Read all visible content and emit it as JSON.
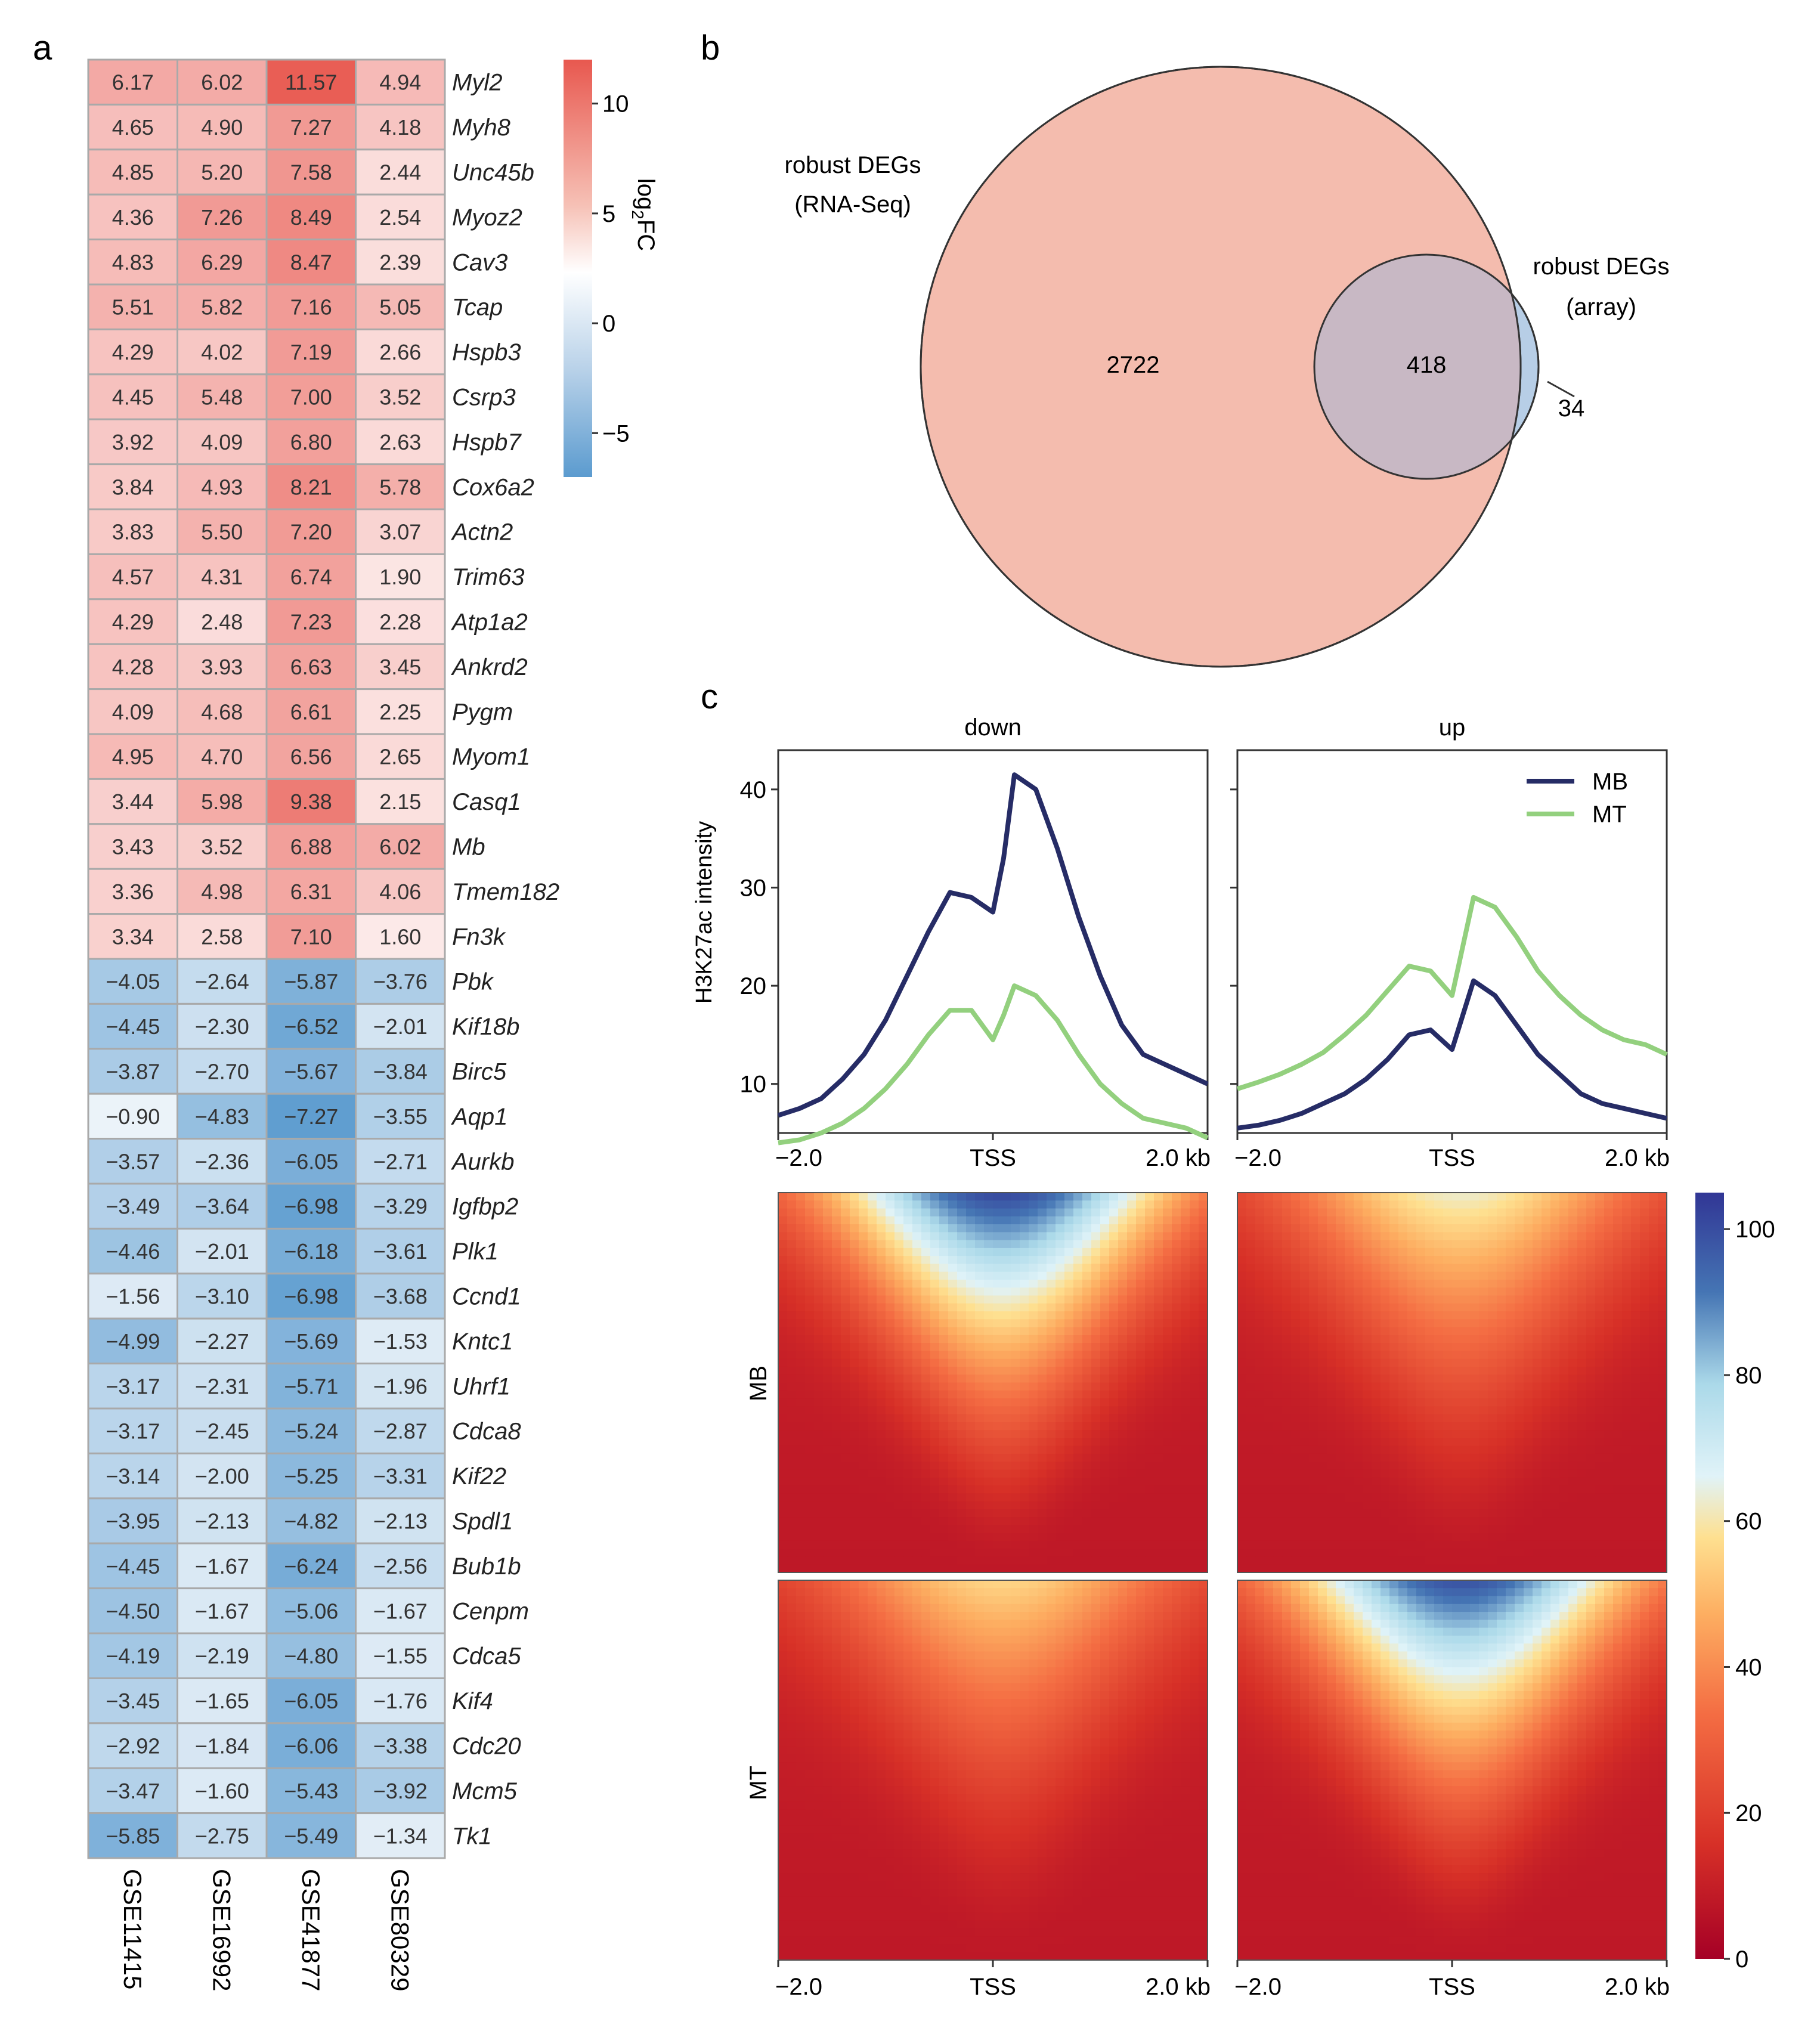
{
  "panels": {
    "a": "a",
    "b": "b",
    "c": "c"
  },
  "chart_data": [
    {
      "type": "heatmap",
      "panel": "a",
      "columns": [
        "GSE11415",
        "GSE16992",
        "GSE41877",
        "GSE80329"
      ],
      "rows": [
        "Myl2",
        "Myh8",
        "Unc45b",
        "Myoz2",
        "Cav3",
        "Tcap",
        "Hspb3",
        "Csrp3",
        "Hspb7",
        "Cox6a2",
        "Actn2",
        "Trim63",
        "Atp1a2",
        "Ankrd2",
        "Pygm",
        "Myom1",
        "Casq1",
        "Mb",
        "Tmem182",
        "Fn3k",
        "Pbk",
        "Kif18b",
        "Birc5",
        "Aqp1",
        "Aurkb",
        "Igfbp2",
        "Plk1",
        "Ccnd1",
        "Kntc1",
        "Uhrf1",
        "Cdca8",
        "Kif22",
        "Spdl1",
        "Bub1b",
        "Cenpm",
        "Cdca5",
        "Kif4",
        "Cdc20",
        "Mcm5",
        "Tk1"
      ],
      "values": [
        [
          6.17,
          6.02,
          11.57,
          4.94
        ],
        [
          4.65,
          4.9,
          7.27,
          4.18
        ],
        [
          4.85,
          5.2,
          7.58,
          2.44
        ],
        [
          4.36,
          7.26,
          8.49,
          2.54
        ],
        [
          4.83,
          6.29,
          8.47,
          2.39
        ],
        [
          5.51,
          5.82,
          7.16,
          5.05
        ],
        [
          4.29,
          4.02,
          7.19,
          2.66
        ],
        [
          4.45,
          5.48,
          7.0,
          3.52
        ],
        [
          3.92,
          4.09,
          6.8,
          2.63
        ],
        [
          3.84,
          4.93,
          8.21,
          5.78
        ],
        [
          3.83,
          5.5,
          7.2,
          3.07
        ],
        [
          4.57,
          4.31,
          6.74,
          1.9
        ],
        [
          4.29,
          2.48,
          7.23,
          2.28
        ],
        [
          4.28,
          3.93,
          6.63,
          3.45
        ],
        [
          4.09,
          4.68,
          6.61,
          2.25
        ],
        [
          4.95,
          4.7,
          6.56,
          2.65
        ],
        [
          3.44,
          5.98,
          9.38,
          2.15
        ],
        [
          3.43,
          3.52,
          6.88,
          6.02
        ],
        [
          3.36,
          4.98,
          6.31,
          4.06
        ],
        [
          3.34,
          2.58,
          7.1,
          1.6
        ],
        [
          -4.05,
          -2.64,
          -5.87,
          -3.76
        ],
        [
          -4.45,
          -2.3,
          -6.52,
          -2.01
        ],
        [
          -3.87,
          -2.7,
          -5.67,
          -3.84
        ],
        [
          -0.9,
          -4.83,
          -7.27,
          -3.55
        ],
        [
          -3.57,
          -2.36,
          -6.05,
          -2.71
        ],
        [
          -3.49,
          -3.64,
          -6.98,
          -3.29
        ],
        [
          -4.46,
          -2.01,
          -6.18,
          -3.61
        ],
        [
          -1.56,
          -3.1,
          -6.98,
          -3.68
        ],
        [
          -4.99,
          -2.27,
          -5.69,
          -1.53
        ],
        [
          -3.17,
          -2.31,
          -5.71,
          -1.96
        ],
        [
          -3.17,
          -2.45,
          -5.24,
          -2.87
        ],
        [
          -3.14,
          -2.0,
          -5.25,
          -3.31
        ],
        [
          -3.95,
          -2.13,
          -4.82,
          -2.13
        ],
        [
          -4.45,
          -1.67,
          -6.24,
          -2.56
        ],
        [
          -4.5,
          -1.67,
          -5.06,
          -1.67
        ],
        [
          -4.19,
          -2.19,
          -4.8,
          -1.55
        ],
        [
          -3.45,
          -1.65,
          -6.05,
          -1.76
        ],
        [
          -2.92,
          -1.84,
          -6.06,
          -3.38
        ],
        [
          -3.47,
          -1.6,
          -5.43,
          -3.92
        ],
        [
          -5.85,
          -2.75,
          -5.49,
          -1.34
        ]
      ],
      "colorbar": {
        "label_main": "log",
        "label_sub": "2",
        "label_tail": "FC",
        "range": [
          -7,
          12
        ],
        "ticks": [
          10,
          5,
          0,
          -5
        ],
        "tick_labels": [
          "10",
          "5",
          "0",
          "−5"
        ],
        "colors": {
          "high": "#e8584f",
          "mid": "#ffffff",
          "low": "#5b9bcf"
        }
      }
    },
    {
      "type": "venn",
      "panel": "b",
      "sets": [
        {
          "label_lines": [
            "robust DEGs",
            "(RNA-Seq)"
          ],
          "color": "#f4bcae"
        },
        {
          "label_lines": [
            "robust DEGs",
            "(array)"
          ],
          "color": "#b7cee6"
        }
      ],
      "regions": {
        "only_rnaseq": "2722",
        "overlap": "418",
        "only_array": "34"
      },
      "overlap_color": "#c8b8c4"
    },
    {
      "type": "line",
      "panel": "c",
      "facets": [
        "down",
        "up"
      ],
      "ylabel": "H3K27ac intensity",
      "yticks": [
        10,
        20,
        30,
        40
      ],
      "ylim": [
        5,
        44
      ],
      "x_tick_labels": [
        "−2.0",
        "TSS",
        "2.0 kb"
      ],
      "series_names": [
        "MB",
        "MT"
      ],
      "series_colors": [
        "#262c66",
        "#93d07e"
      ],
      "x": [
        -2.0,
        -1.8,
        -1.6,
        -1.4,
        -1.2,
        -1.0,
        -0.8,
        -0.6,
        -0.4,
        -0.2,
        0.0,
        0.1,
        0.2,
        0.4,
        0.6,
        0.8,
        1.0,
        1.2,
        1.4,
        1.6,
        1.8,
        2.0
      ],
      "down": {
        "MB": [
          6.8,
          7.5,
          8.5,
          10.5,
          13,
          16.5,
          21,
          25.5,
          29.5,
          29,
          27.5,
          33,
          41.5,
          40,
          34,
          27,
          21,
          16,
          13,
          12,
          11,
          10
        ],
        "MT": [
          4,
          4.3,
          5,
          6,
          7.5,
          9.5,
          12,
          15,
          17.5,
          17.5,
          14.5,
          17,
          20,
          19,
          16.5,
          13,
          10,
          8,
          6.5,
          6,
          5.5,
          4.5
        ]
      },
      "up": {
        "MB": [
          5.5,
          5.8,
          6.3,
          7,
          8,
          9,
          10.5,
          12.5,
          15,
          15.5,
          13.5,
          17,
          20.5,
          19,
          16,
          13,
          11,
          9,
          8,
          7.5,
          7,
          6.5
        ],
        "MT": [
          9.5,
          10.2,
          11,
          12,
          13.2,
          15,
          17,
          19.5,
          22,
          21.5,
          19,
          24,
          29,
          28,
          25,
          21.5,
          19,
          17,
          15.5,
          14.5,
          14,
          13
        ]
      }
    },
    {
      "type": "heatmap",
      "panel": "c",
      "rows": [
        "MB",
        "MT"
      ],
      "columns": [
        "down",
        "up"
      ],
      "x_tick_labels": [
        "−2.0",
        "TSS",
        "2.0 kb"
      ],
      "colorbar": {
        "range": [
          0,
          105
        ],
        "ticks": [
          0,
          20,
          40,
          60,
          80,
          100
        ],
        "tick_labels": [
          "0",
          "20",
          "40",
          "60",
          "80",
          "100"
        ]
      },
      "peak_intensity": {
        "MB": {
          "down": 100,
          "up": 62
        },
        "MT": {
          "down": 55,
          "up": 98
        }
      }
    }
  ]
}
